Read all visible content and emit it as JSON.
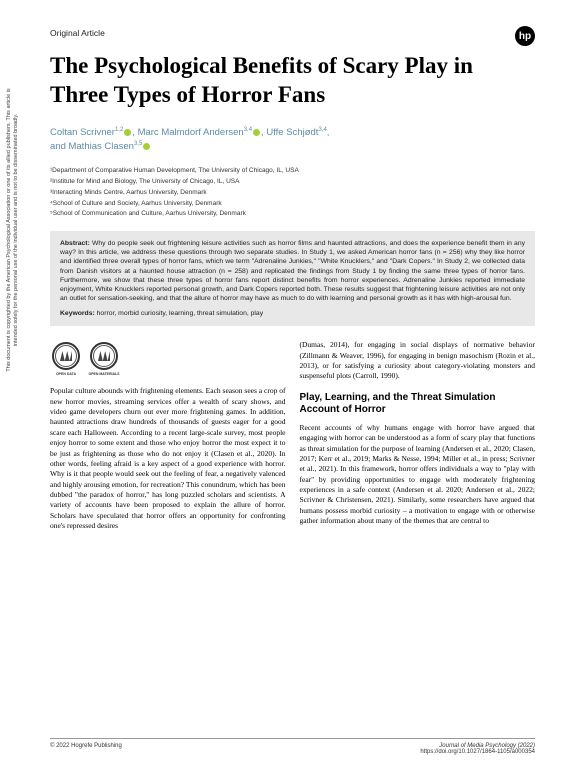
{
  "side_note": "This document is copyrighted by the American Psychological Association or one of its allied publishers. This article is intended solely for the personal use of the individual user and is not to be disseminated broadly.",
  "article_type": "Original Article",
  "logo_text": "hp",
  "title": "The Psychological Benefits of Scary Play in Three Types of Horror Fans",
  "authors_line1": "Coltan Scrivner",
  "authors_sup1": "1,2",
  "authors_line1b": ", Marc Malmdorf Andersen",
  "authors_sup2": "3,4",
  "authors_line1c": ", Uffe Schjødt",
  "authors_sup3": "3,4",
  "authors_line1d": ",",
  "authors_line2": "and Mathias Clasen",
  "authors_sup4": "3,5",
  "affiliations": [
    "¹Department of Comparative Human Development, The University of Chicago, IL, USA",
    "²Institute for Mind and Biology, The University of Chicago, IL, USA",
    "³Interacting Minds Centre, Aarhus University, Denmark",
    "⁴School of Culture and Society, Aarhus University, Denmark",
    "⁵School of Communication and Culture, Aarhus University, Denmark"
  ],
  "abstract_label": "Abstract:",
  "abstract_text": " Why do people seek out frightening leisure activities such as horror films and haunted attractions, and does the experience benefit them in any way? In this article, we address these questions through two separate studies. In Study 1, we asked American horror fans (n = 256) why they like horror and identified three overall types of horror fans, which we term \"Adrenaline Junkies,\" \"White Knucklers,\" and \"Dark Copers.\" In Study 2, we collected data from Danish visitors at a haunted house attraction (n = 258) and replicated the findings from Study 1 by finding the same three types of horror fans. Furthermore, we show that these three types of horror fans report distinct benefits from horror experiences. Adrenaline Junkies reported immediate enjoyment, White Knucklers reported personal growth, and Dark Copers reported both. These results suggest that frightening leisure activities are not only an outlet for sensation-seeking, and that the allure of horror may have as much to do with learning and personal growth as it has with high-arousal fun.",
  "keywords_label": "Keywords:",
  "keywords_text": " horror, morbid curiosity, learning, threat simulation, play",
  "badge1": "OPEN DATA",
  "badge2": "OPEN MATERIALS",
  "col1_p1": "Popular culture abounds with frightening elements. Each season sees a crop of new horror movies, streaming services offer a wealth of scary shows, and video game developers churn out ever more frightening games. In addition, haunted attractions draw hundreds of thousands of guests eager for a good scare each Halloween. According to a recent large-scale survey, most people enjoy horror to some extent and those who enjoy horror the most expect it to be just as frightening as those who do not enjoy it (Clasen et al., 2020). In other words, feeling afraid is a key aspect of a good experience with horror. Why is it that people would seek out the feeling of fear, a negatively valenced and highly arousing emotion, for recreation? This conundrum, which has been dubbed \"the paradox of horror,\" has long puzzled scholars and scientists. A variety of accounts have been proposed to explain the allure of horror. Scholars have speculated that horror offers an opportunity for confronting one's repressed desires",
  "col2_p1": "(Dumas, 2014), for engaging in social displays of normative behavior (Zillmann & Weaver, 1996), for engaging in benign masochism (Rozin et al., 2013), or for satisfying a curiosity about category-violating monsters and suspenseful plots (Carroll, 1990).",
  "section_heading": "Play, Learning, and the Threat Simulation Account of Horror",
  "col2_p2": "Recent accounts of why humans engage with horror have argued that engaging with horror can be understood as a form of scary play that functions as threat simulation for the purpose of learning (Andersen et al., 2020; Clasen, 2017; Kerr et al., 2019; Marks & Nesse, 1994; Miller et al., in press; Scrivner et al., 2021). In this framework, horror offers individuals a way to \"play with fear\" by providing opportunities to engage with moderately frightening experiences in a safe context (Andersen et al. 2020; Andersen et al., 2022; Scrivner & Christensen, 2021). Similarly, some researchers have argued that humans possess morbid curiosity – a motivation to engage with or otherwise gather information about many of the themes that are central to",
  "footer_left": "© 2022 Hogrefe Publishing",
  "footer_right_journal": "Journal of Media Psychology (2022)",
  "footer_right_doi": "https://doi.org/10.1027/1864-1105/a000354"
}
